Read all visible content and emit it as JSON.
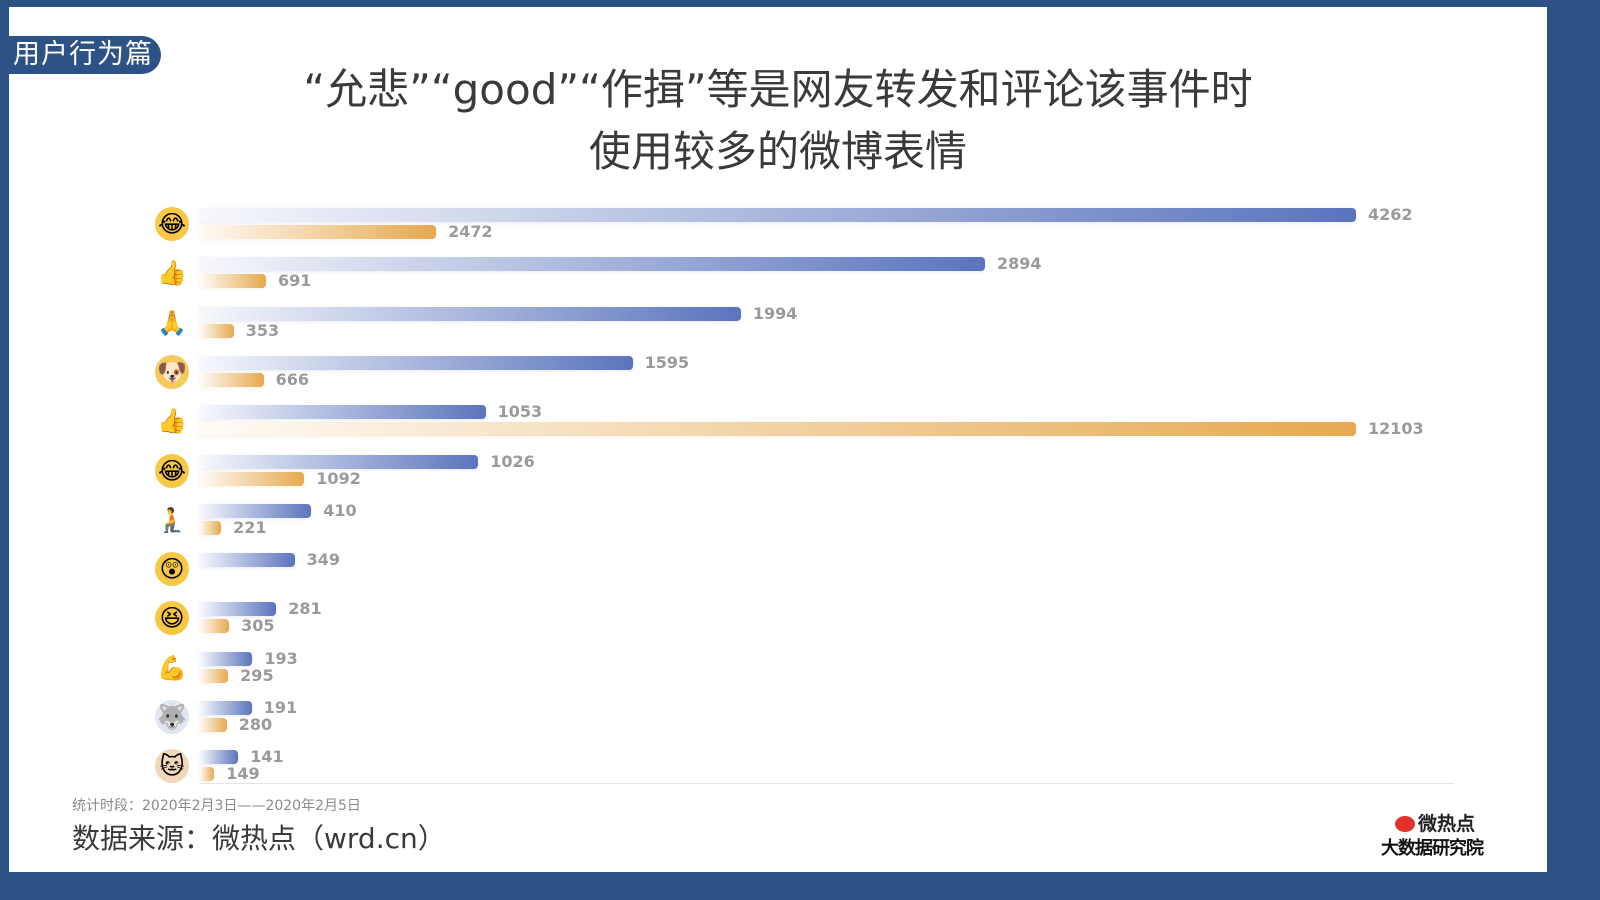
{
  "header": {
    "section_tag": "用户行为篇",
    "title_line1": "“允悲”“good”“作揖”等是网友转发和评论该事件时",
    "title_line2": "使用较多的微博表情"
  },
  "colors": {
    "frame": "#2d5286",
    "series_forward": "#5a74bd",
    "series_comment": "#e6a94f",
    "value_label": "#9a9a9a"
  },
  "chart_data": {
    "type": "bar",
    "orientation": "horizontal",
    "title": "“允悲”“good”“作揖”等是网友转发和评论该事件时使用较多的微博表情",
    "categories": [
      "允悲",
      "赞",
      "作揖",
      "二哈/doge",
      "good",
      "笑cry",
      "跪了",
      "吃惊",
      "哈哈",
      "加油/肌肉",
      "二哈晕",
      "喵喵"
    ],
    "series": [
      {
        "name": "blue series",
        "color": "#5a74bd",
        "values": [
          4262,
          2894,
          1994,
          1595,
          1053,
          1026,
          410,
          349,
          281,
          193,
          191,
          141
        ]
      },
      {
        "name": "orange series",
        "color": "#e6a94f",
        "values": [
          2472,
          691,
          353,
          666,
          12103,
          1092,
          221,
          null,
          305,
          295,
          280,
          149
        ]
      }
    ],
    "xlabel": "",
    "ylabel": "",
    "grid": false,
    "legend": "none"
  },
  "rows": [
    {
      "icon": "😂",
      "icon_name": "facepalm-laugh-emoji-icon",
      "icon_bg": "#f7c843",
      "blue": 4262,
      "orange": 2472
    },
    {
      "icon": "👍",
      "icon_name": "thumbs-up-emoji-icon",
      "icon_bg": "transparent",
      "blue": 2894,
      "orange": 691
    },
    {
      "icon": "🙏",
      "icon_name": "bow-hands-emoji-icon",
      "icon_bg": "transparent",
      "blue": 1994,
      "orange": 353
    },
    {
      "icon": "🐶",
      "icon_name": "doge-emoji-icon",
      "icon_bg": "#f5c95a",
      "blue": 1595,
      "orange": 666
    },
    {
      "icon": "👍",
      "icon_name": "good-thumb-emoji-icon",
      "icon_bg": "transparent",
      "blue": 1053,
      "orange": 12103
    },
    {
      "icon": "😂",
      "icon_name": "laugh-cry-emoji-icon",
      "icon_bg": "#f7c843",
      "blue": 1026,
      "orange": 1092
    },
    {
      "icon": "🧎",
      "icon_name": "kneel-emoji-icon",
      "icon_bg": "transparent",
      "blue": 410,
      "orange": 221
    },
    {
      "icon": "😲",
      "icon_name": "shocked-emoji-icon",
      "icon_bg": "#f7c843",
      "blue": 349,
      "orange": null
    },
    {
      "icon": "😆",
      "icon_name": "haha-emoji-icon",
      "icon_bg": "#f7c843",
      "blue": 281,
      "orange": 305
    },
    {
      "icon": "💪",
      "icon_name": "muscle-emoji-icon",
      "icon_bg": "transparent",
      "blue": 193,
      "orange": 295
    },
    {
      "icon": "🐺",
      "icon_name": "husky-dizzy-emoji-icon",
      "icon_bg": "#dfe6ef",
      "blue": 191,
      "orange": 280
    },
    {
      "icon": "🐱",
      "icon_name": "cat-emoji-icon",
      "icon_bg": "#f1d8b8",
      "blue": 141,
      "orange": 149
    }
  ],
  "footer": {
    "period": "统计时段：2020年2月3日——2020年2月5日",
    "source": "数据来源：微热点（wrd.cn）",
    "logo_line1": "微热点",
    "logo_line2": "大数据研究院"
  }
}
